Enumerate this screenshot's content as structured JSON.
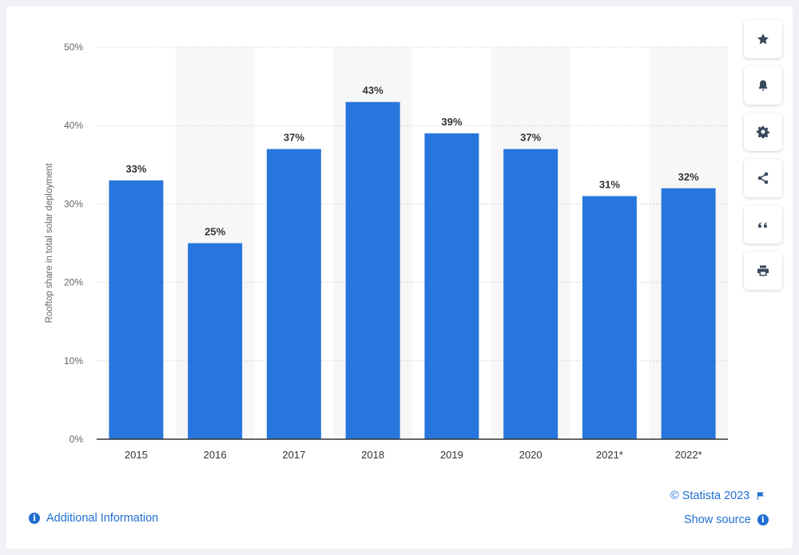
{
  "chart_data": {
    "type": "bar",
    "categories": [
      "2015",
      "2016",
      "2017",
      "2018",
      "2019",
      "2020",
      "2021*",
      "2022*"
    ],
    "values": [
      33,
      25,
      37,
      43,
      39,
      37,
      31,
      32
    ],
    "value_labels": [
      "33%",
      "25%",
      "37%",
      "43%",
      "39%",
      "37%",
      "31%",
      "32%"
    ],
    "ylabel": "Rooftop share in total solar deployment",
    "xlabel": "",
    "ylim": [
      0,
      50
    ],
    "yticks": [
      0,
      10,
      20,
      30,
      40,
      50
    ],
    "ytick_labels": [
      "0%",
      "10%",
      "20%",
      "30%",
      "40%",
      "50%"
    ],
    "grid": true,
    "bar_color": "#2876dd",
    "band_color": "#f7f7f7"
  },
  "sidebar": {
    "buttons": [
      {
        "name": "star-icon"
      },
      {
        "name": "bell-icon"
      },
      {
        "name": "gear-icon"
      },
      {
        "name": "share-icon"
      },
      {
        "name": "quote-icon"
      },
      {
        "name": "print-icon"
      }
    ]
  },
  "footer": {
    "copyright": "© Statista 2023",
    "additional_info": "Additional Information",
    "show_source": "Show source"
  },
  "colors": {
    "accent": "#1f6fd1",
    "icon": "#3a4a5e"
  }
}
